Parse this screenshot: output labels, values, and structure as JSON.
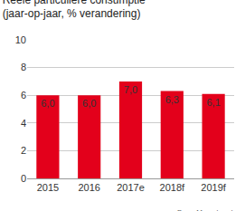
{
  "chart_data": {
    "type": "bar",
    "title": "Reële particuliere consumptie",
    "subtitle": "(jaar-op-jaar, % verandering)",
    "source": "Bron: Macrobond",
    "categories": [
      "2015",
      "2016",
      "2017e",
      "2018f",
      "2019f"
    ],
    "values": [
      6.0,
      6.0,
      7.0,
      6.3,
      6.1
    ],
    "value_labels": [
      "6,0",
      "6,0",
      "7,0",
      "6,3",
      "6,1"
    ],
    "data_labels": true,
    "color": "#e3001b",
    "ylim": [
      0,
      10
    ],
    "yticks": [
      0,
      2,
      4,
      6,
      8,
      10
    ],
    "grid": true
  }
}
